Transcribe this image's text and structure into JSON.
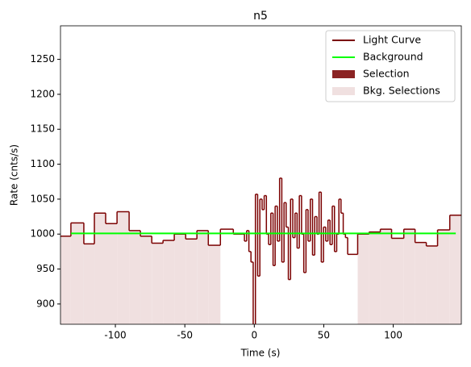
{
  "chart_data": {
    "type": "step",
    "title": "n5",
    "x_label": "Time (s)",
    "y_label": "Rate (cnts/s)",
    "xlim": [
      -139.5,
      149
    ],
    "ylim": [
      871,
      1298
    ],
    "xticks": [
      -100,
      -50,
      0,
      50,
      100
    ],
    "yticks": [
      900,
      950,
      1000,
      1050,
      1100,
      1150,
      1200,
      1250
    ],
    "legend_position": "upper right",
    "x": [
      -139.5,
      -132,
      -122.7,
      -115.1,
      -107,
      -98.8,
      -90.1,
      -82,
      -73.8,
      -65.7,
      -57.6,
      -49.4,
      -41.3,
      -33.1,
      -24.4,
      -15.1,
      -8.7,
      -7.1,
      -5.5,
      -3.9,
      -2.4,
      -0.8,
      0.8,
      2.4,
      4.0,
      5.6,
      7.1,
      8.7,
      10.3,
      11.9,
      13.5,
      15.0,
      16.6,
      18.2,
      19.8,
      21.4,
      22.9,
      24.5,
      26.1,
      27.7,
      29.3,
      30.8,
      32.4,
      34.0,
      35.6,
      37.2,
      38.7,
      40.3,
      41.9,
      43.5,
      45.1,
      46.6,
      48.2,
      49.8,
      51.4,
      53.0,
      54.5,
      56.1,
      57.7,
      59.3,
      60.9,
      62.4,
      64.0,
      65.6,
      67.2,
      74.4,
      82.6,
      90.7,
      98.8,
      107.6,
      115.7,
      123.8,
      131.9,
      140.7,
      149
    ],
    "series": [
      {
        "name": "Light Curve",
        "color": "#7b0000",
        "values": [
          997,
          1016,
          986,
          1030,
          1015,
          1032,
          1005,
          997,
          987,
          991,
          1000,
          993,
          1005,
          984,
          1007,
          1000,
          1000,
          990,
          1005,
          975,
          960,
          860,
          1057,
          940,
          1050,
          1035,
          1055,
          1000,
          985,
          1030,
          955,
          1040,
          990,
          1080,
          960,
          1045,
          1010,
          935,
          1050,
          995,
          1030,
          980,
          1055,
          1000,
          945,
          1035,
          990,
          1050,
          970,
          1025,
          1000,
          1060,
          960,
          1010,
          990,
          1020,
          985,
          1040,
          975,
          1000,
          1050,
          1030,
          1000,
          995,
          971,
          1000,
          1003,
          1007,
          994,
          1007,
          988,
          983,
          1006,
          1027,
          1027
        ]
      }
    ],
    "background": {
      "name": "Background",
      "color": "#00ff00",
      "x": [
        -132,
        145
      ],
      "values": [
        1001,
        1001
      ]
    },
    "selection": {
      "name": "Selection",
      "color": "#8b2323",
      "range": [
        -0.8,
        0.8
      ]
    },
    "bkg_selections": {
      "name": "Bkg. Selections",
      "color": "#f0e0e0",
      "ranges": [
        [
          -139.5,
          -24.4
        ],
        [
          74.4,
          149
        ]
      ]
    }
  }
}
